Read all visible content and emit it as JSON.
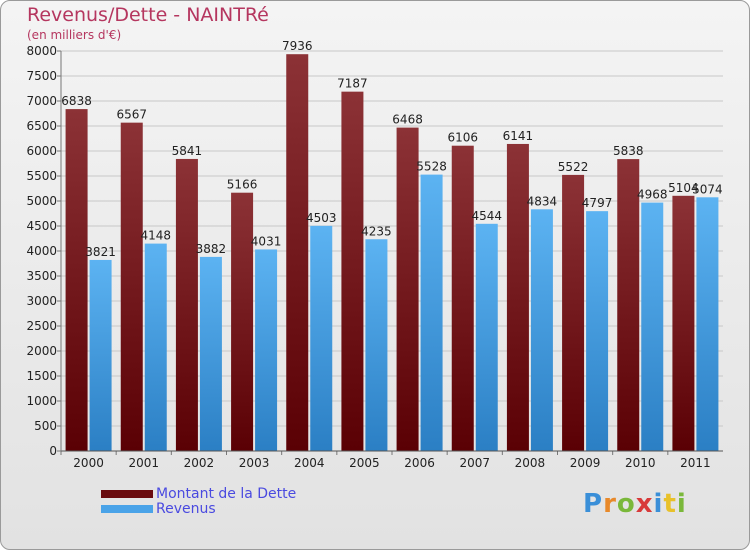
{
  "header": {
    "title": "Revenus/Dette - NAINTRé",
    "subtitle": "(en milliers d'€)"
  },
  "legend": {
    "items": [
      {
        "label": "Montant de la Dette",
        "color": "#6a0b0e"
      },
      {
        "label": "Revenus",
        "color": "#4aa3e8"
      }
    ]
  },
  "logo": {
    "text": "Proxiti"
  },
  "chart_data": {
    "type": "bar",
    "title": "Revenus/Dette - NAINTRé",
    "subtitle": "(en milliers d'€)",
    "xlabel": "",
    "ylabel": "",
    "ylim": [
      0,
      8000
    ],
    "ytick_step": 500,
    "categories": [
      "2000",
      "2001",
      "2002",
      "2003",
      "2004",
      "2005",
      "2006",
      "2007",
      "2008",
      "2009",
      "2010",
      "2011"
    ],
    "series": [
      {
        "name": "Montant de la Dette",
        "color": "#7a1a1e",
        "values": [
          6838,
          6567,
          5841,
          5166,
          7936,
          7187,
          6468,
          6106,
          6141,
          5522,
          5838,
          5104
        ]
      },
      {
        "name": "Revenus",
        "color": "#4aa3e8",
        "values": [
          3821,
          4148,
          3882,
          4031,
          4503,
          4235,
          5528,
          4544,
          4834,
          4797,
          4968,
          5074
        ]
      }
    ]
  }
}
